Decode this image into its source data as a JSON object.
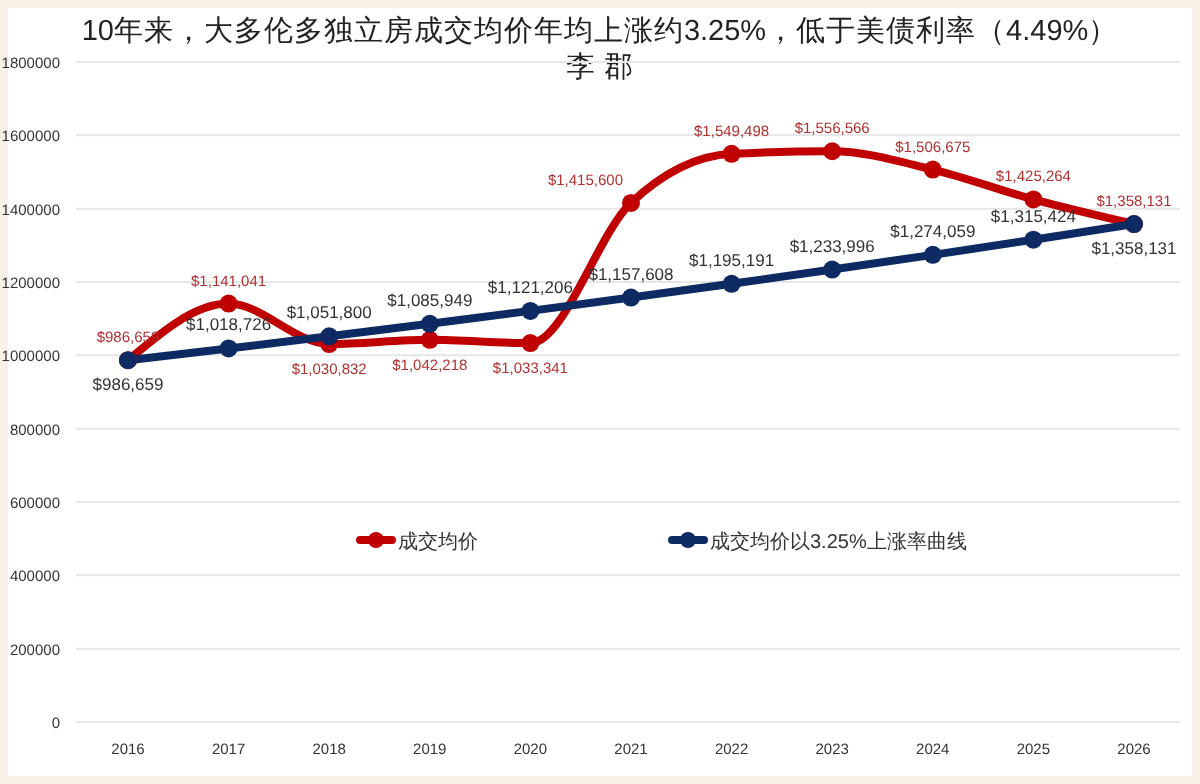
{
  "chart_data": {
    "type": "line",
    "title": "10年来，大多伦多独立房成交均价年均上涨约3.25%，低于美债利率（4.49%）",
    "subtitle": "李 郡",
    "categories": [
      "2016",
      "2017",
      "2018",
      "2019",
      "2020",
      "2021",
      "2022",
      "2023",
      "2024",
      "2025",
      "2026"
    ],
    "series": [
      {
        "name": "成交均价",
        "color": "#c00000",
        "values": [
          986659,
          1141041,
          1030832,
          1042218,
          1033341,
          1415600,
          1549498,
          1556566,
          1506675,
          1425264,
          1358131
        ],
        "value_labels": [
          "$986,659",
          "$1,141,041",
          "$1,030,832",
          "$1,042,218",
          "$1,033,341",
          "$1,415,600",
          "$1,549,498",
          "$1,556,566",
          "$1,506,675",
          "$1,425,264",
          "$1,358,131"
        ]
      },
      {
        "name": "成交均价以3.25%上涨率曲线",
        "color": "#0d2a63",
        "values": [
          986659,
          1018726,
          1051800,
          1085949,
          1121206,
          1157608,
          1195191,
          1233996,
          1274059,
          1315424,
          1358131
        ],
        "value_labels": [
          "$986,659",
          "$1,018,726",
          "$1,051,800",
          "$1,085,949",
          "$1,121,206",
          "$1,157,608",
          "$1,195,191",
          "$1,233,996",
          "$1,274,059",
          "$1,315,424",
          "$1,358,131"
        ]
      }
    ],
    "ylim": [
      0,
      1800000
    ],
    "yticks": [
      0,
      200000,
      400000,
      600000,
      800000,
      1000000,
      1200000,
      1400000,
      1600000,
      1800000
    ],
    "grid": "y",
    "legend": "center",
    "marker": "circle",
    "line_style": "solid"
  }
}
